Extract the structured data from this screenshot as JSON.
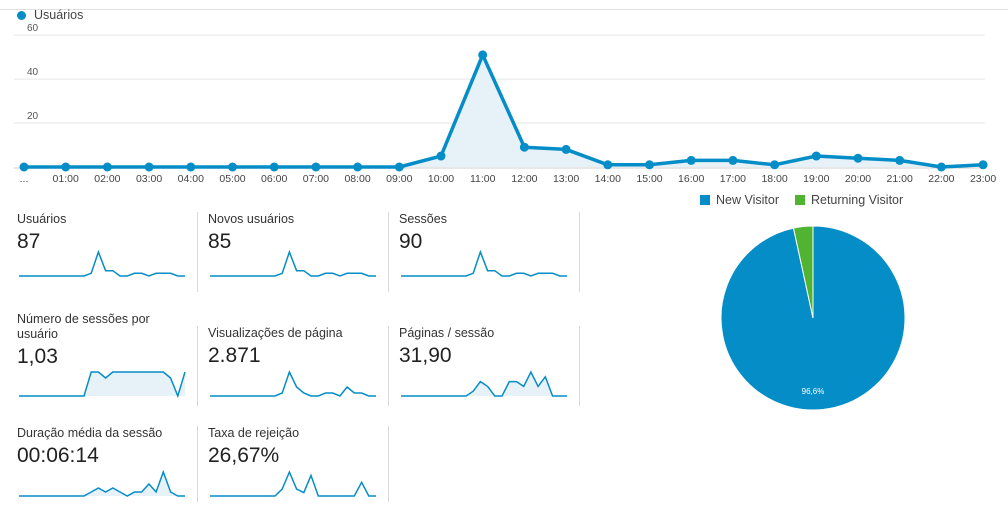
{
  "top_legend": {
    "label": "Usuários",
    "color": "#058dc7"
  },
  "chart_data": [
    {
      "type": "area",
      "series": [
        {
          "name": "Usuários",
          "color": "#058dc7",
          "values": [
            0,
            0,
            0,
            0,
            0,
            0,
            0,
            0,
            0,
            0,
            5,
            51,
            9,
            8,
            1,
            1,
            3,
            3,
            1,
            5,
            4,
            3,
            0,
            1
          ]
        }
      ],
      "categories": [
        "...",
        "01:00",
        "02:00",
        "03:00",
        "04:00",
        "05:00",
        "06:00",
        "07:00",
        "08:00",
        "09:00",
        "10:00",
        "11:00",
        "12:00",
        "13:00",
        "14:00",
        "15:00",
        "16:00",
        "17:00",
        "18:00",
        "19:00",
        "20:00",
        "21:00",
        "22:00",
        "23:00"
      ],
      "yticks": [
        20,
        40,
        60
      ],
      "ylim": [
        0,
        65
      ],
      "grid": true
    },
    {
      "type": "pie",
      "labels": [
        "New Visitor",
        "Returning Visitor"
      ],
      "values": [
        96.6,
        3.4
      ],
      "colors": [
        "#058dc7",
        "#50b432"
      ],
      "data_labels": [
        "96,6%",
        ""
      ]
    }
  ],
  "metrics": [
    {
      "label": "Usuários",
      "value": "87",
      "spark": [
        0,
        0,
        0,
        0,
        0,
        0,
        0,
        0,
        0,
        0,
        1,
        9,
        2,
        2,
        0,
        0,
        1,
        1,
        0,
        1,
        1,
        1,
        0,
        0
      ],
      "fill": false
    },
    {
      "label": "Novos usuários",
      "value": "85",
      "spark": [
        0,
        0,
        0,
        0,
        0,
        0,
        0,
        0,
        0,
        0,
        1,
        9,
        2,
        2,
        0,
        0,
        1,
        1,
        0,
        1,
        1,
        1,
        0,
        0
      ],
      "fill": false
    },
    {
      "label": "Sessões",
      "value": "90",
      "spark": [
        0,
        0,
        0,
        0,
        0,
        0,
        0,
        0,
        0,
        0,
        1,
        9,
        2,
        2,
        0,
        0,
        1,
        1,
        0,
        1,
        1,
        1,
        0,
        0
      ],
      "fill": false
    },
    {
      "label": "Número de sessões por usuário",
      "value": "1,03",
      "spark": [
        0,
        0,
        0,
        0,
        0,
        0,
        0,
        0,
        0,
        0,
        4,
        4,
        3,
        4,
        4,
        4,
        4,
        4,
        4,
        4,
        4,
        3,
        0,
        4
      ],
      "fill": true
    },
    {
      "label": "Visualizações de página",
      "value": "2.871",
      "spark": [
        0,
        0,
        0,
        0,
        0,
        0,
        0,
        0,
        0,
        0,
        1,
        8,
        3,
        1,
        0,
        0,
        1,
        1,
        0,
        3,
        1,
        1,
        0,
        0
      ],
      "fill": false
    },
    {
      "label": "Páginas / sessão",
      "value": "31,90",
      "spark": [
        0,
        0,
        0,
        0,
        0,
        0,
        0,
        0,
        0,
        0,
        1,
        3,
        2,
        0,
        0,
        3,
        3,
        2,
        5,
        2,
        4,
        0,
        0,
        0
      ],
      "fill": true
    },
    {
      "label": "Duração média da sessão",
      "value": "00:06:14",
      "spark": [
        0,
        0,
        0,
        0,
        0,
        0,
        0,
        0,
        0,
        0,
        1,
        2,
        1,
        2,
        1,
        0,
        1,
        1,
        3,
        1,
        6,
        1,
        0,
        0
      ],
      "fill": true
    },
    {
      "label": "Taxa de rejeição",
      "value": "26,67%",
      "spark": [
        0,
        0,
        0,
        0,
        0,
        0,
        0,
        0,
        0,
        0,
        2,
        7,
        2,
        1,
        6,
        0,
        0,
        0,
        0,
        0,
        0,
        4,
        0,
        0
      ],
      "fill": false
    }
  ]
}
